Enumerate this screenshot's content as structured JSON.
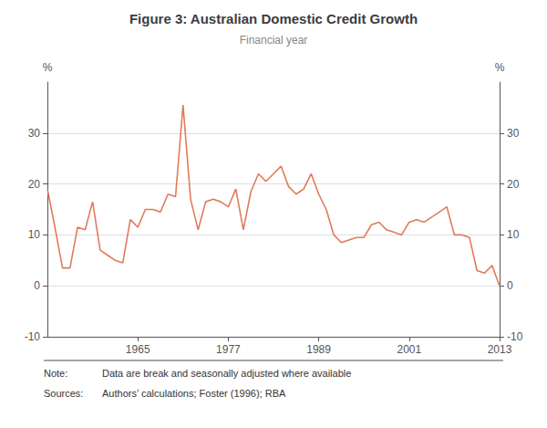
{
  "chart_data": {
    "type": "line",
    "title": "Figure 3: Australian Domestic Credit Growth",
    "subtitle": "Financial year",
    "y_label": "%",
    "y2_label": "%",
    "annotations": [
      {
        "label": "Note:",
        "text": "Data are break and seasonally adjusted where available"
      },
      {
        "label": "Sources:",
        "text": "Authors’ calculations; Foster (1996); RBA"
      }
    ],
    "color": "#E07B5A",
    "background_color": "#ffffff",
    "grid": true,
    "xlim": [
      1953,
      2013
    ],
    "xticks": [
      1965,
      1977,
      1989,
      2001,
      2013
    ],
    "ylim": [
      -10,
      40
    ],
    "yticks": [
      -10,
      0,
      10,
      20,
      30
    ],
    "y2lim": [
      -10,
      40
    ],
    "y2ticks": [
      -10,
      0,
      10,
      20,
      30
    ],
    "x": [
      1953,
      1954,
      1955,
      1956,
      1957,
      1958,
      1959,
      1960,
      1961,
      1962,
      1963,
      1964,
      1965,
      1966,
      1967,
      1968,
      1969,
      1970,
      1971,
      1972,
      1973,
      1974,
      1975,
      1976,
      1977,
      1978,
      1979,
      1980,
      1981,
      1982,
      1983,
      1984,
      1985,
      1986,
      1987,
      1988,
      1989,
      1990,
      1991,
      1992,
      1993,
      1994,
      1995,
      1996,
      1997,
      1998,
      1999,
      2000,
      2001,
      2002,
      2003,
      2004,
      2005,
      2006,
      2007,
      2008,
      2009,
      2010,
      2011,
      2012,
      2013
    ],
    "values": [
      19.0,
      11.5,
      3.5,
      3.5,
      11.5,
      11.0,
      16.5,
      7.0,
      6.0,
      5.0,
      4.5,
      13.0,
      11.5,
      15.0,
      15.0,
      14.5,
      18.0,
      17.5,
      35.5,
      17.0,
      11.0,
      16.5,
      17.0,
      16.5,
      15.5,
      19.0,
      11.0,
      18.5,
      22.0,
      20.5,
      22.0,
      23.5,
      19.5,
      18.0,
      19.0,
      22.0,
      18.0,
      15.0,
      10.0,
      8.5,
      9.0,
      9.5,
      9.5,
      12.0,
      12.5,
      11.0,
      10.5,
      10.0,
      12.5,
      13.0,
      12.5,
      13.5,
      14.5,
      15.5,
      10.0,
      10.0,
      9.5,
      3.0,
      2.5,
      4.0,
      0.0
    ]
  }
}
